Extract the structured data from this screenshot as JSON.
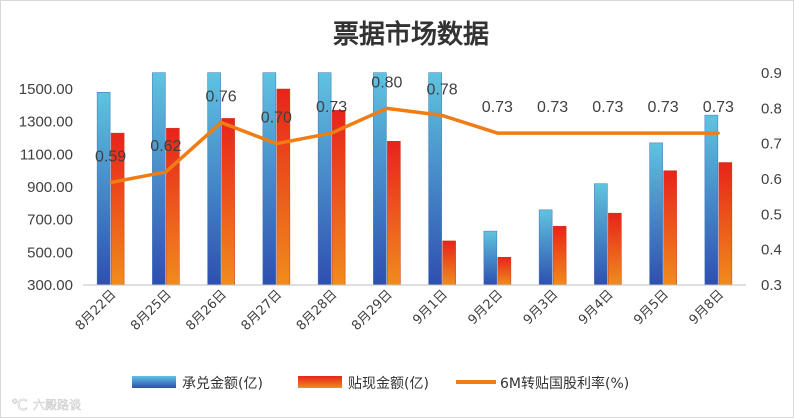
{
  "chart_data": {
    "type": "bar",
    "title": "票据市场数据",
    "categories": [
      "8月22日",
      "8月25日",
      "8月26日",
      "8月27日",
      "8月28日",
      "8月29日",
      "9月1日",
      "9月2日",
      "9月3日",
      "9月4日",
      "9月5日",
      "9月8日"
    ],
    "y_left": {
      "ylim": [
        300,
        1600
      ],
      "ticks": [
        "1500.00",
        "1300.00",
        "1100.00",
        "900.00",
        "700.00",
        "500.00",
        "300.00"
      ]
    },
    "y_right": {
      "ylim": [
        0.3,
        0.9
      ],
      "ticks": [
        "0.9",
        "0.8",
        "0.7",
        "0.6",
        "0.5",
        "0.4",
        "0.3"
      ]
    },
    "series": [
      {
        "name": "承兑金额(亿)",
        "type": "bar",
        "axis": "left",
        "color_top": "#5fc4e0",
        "color_bottom": "#2e4fb0",
        "values": [
          1480,
          1600,
          1600,
          1600,
          1600,
          1600,
          1600,
          630,
          760,
          920,
          1170,
          1340
        ]
      },
      {
        "name": "贴现金额(亿)",
        "type": "bar",
        "axis": "left",
        "color_top": "#e8231b",
        "color_bottom": "#f08c1c",
        "values": [
          1230,
          1260,
          1320,
          1500,
          1370,
          1180,
          570,
          470,
          660,
          740,
          1000,
          1050
        ]
      },
      {
        "name": "6M转贴国股利率(%)",
        "type": "line",
        "axis": "right",
        "color": "#f07c14",
        "values": [
          0.59,
          0.62,
          0.76,
          0.7,
          0.73,
          0.8,
          0.78,
          0.73,
          0.73,
          0.73,
          0.73,
          0.73
        ],
        "labels": [
          "0.59",
          "0.62",
          "0.76",
          "0.70",
          "0.73",
          "0.80",
          "0.78",
          "0.73",
          "0.73",
          "0.73",
          "0.73",
          "0.73"
        ]
      }
    ],
    "legend": "bottom",
    "grid": false
  },
  "watermark": {
    "text": "六殿路谈"
  }
}
